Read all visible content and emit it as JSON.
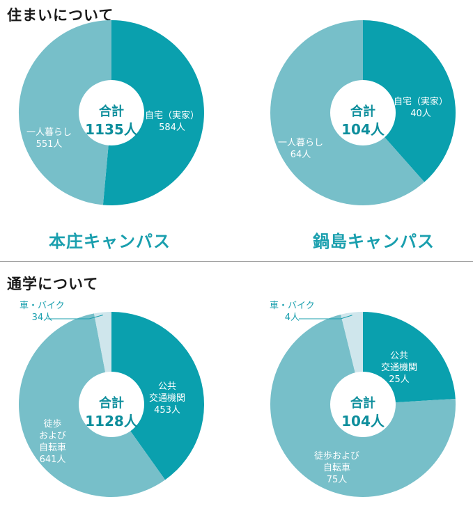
{
  "sections": {
    "housing_title": "住まいについて",
    "commute_title": "通学について"
  },
  "charts": {
    "c1": {
      "total_label": "合計",
      "total_value": "1135人",
      "campus": "本庄キャンパス",
      "slices": [
        {
          "label": "自宅（実家）",
          "value_text": "584人"
        },
        {
          "label": "一人暮らし",
          "value_text": "551人"
        }
      ]
    },
    "c2": {
      "total_label": "合計",
      "total_value": "104人",
      "campus": "鍋島キャンパス",
      "slices": [
        {
          "label": "自宅（実家）",
          "value_text": "40人"
        },
        {
          "label": "一人暮らし",
          "value_text": "64人"
        }
      ]
    },
    "c3": {
      "total_label": "合計",
      "total_value": "1128人",
      "slices": [
        {
          "label1": "公共",
          "label2": "交通機関",
          "value_text": "453人"
        },
        {
          "label1": "徒歩",
          "label2": "および",
          "label3": "自転車",
          "value_text": "641人"
        },
        {
          "label": "車・バイク",
          "value_text": "34人"
        }
      ]
    },
    "c4": {
      "total_label": "合計",
      "total_value": "104人",
      "slices": [
        {
          "label1": "公共",
          "label2": "交通機関",
          "value_text": "25人"
        },
        {
          "label1": "徒歩および",
          "label2": "自転車",
          "value_text": "75人"
        },
        {
          "label": "車・バイク",
          "value_text": "4人"
        }
      ]
    }
  },
  "colors": {
    "dark_teal": "#0aa0ae",
    "light_teal": "#77bfc9",
    "pale_teal": "#cfe6ec",
    "text_teal": "#1a9fae"
  },
  "chart_data": [
    {
      "type": "pie",
      "title": "本庄キャンパス",
      "section": "住まいについて",
      "categories": [
        "自宅（実家）",
        "一人暮らし"
      ],
      "values": [
        584,
        551
      ],
      "total": 1135,
      "colors": [
        "#0aa0ae",
        "#77bfc9"
      ]
    },
    {
      "type": "pie",
      "title": "鍋島キャンパス",
      "section": "住まいについて",
      "categories": [
        "自宅（実家）",
        "一人暮らし"
      ],
      "values": [
        40,
        64
      ],
      "total": 104,
      "colors": [
        "#0aa0ae",
        "#77bfc9"
      ]
    },
    {
      "type": "pie",
      "title": "本庄キャンパス",
      "section": "通学について",
      "categories": [
        "公共交通機関",
        "徒歩および自転車",
        "車・バイク"
      ],
      "values": [
        453,
        641,
        34
      ],
      "total": 1128,
      "colors": [
        "#0aa0ae",
        "#77bfc9",
        "#cfe6ec"
      ]
    },
    {
      "type": "pie",
      "title": "鍋島キャンパス",
      "section": "通学について",
      "categories": [
        "公共交通機関",
        "徒歩および自転車",
        "車・バイク"
      ],
      "values": [
        25,
        75,
        4
      ],
      "total": 104,
      "colors": [
        "#0aa0ae",
        "#77bfc9",
        "#cfe6ec"
      ]
    }
  ]
}
